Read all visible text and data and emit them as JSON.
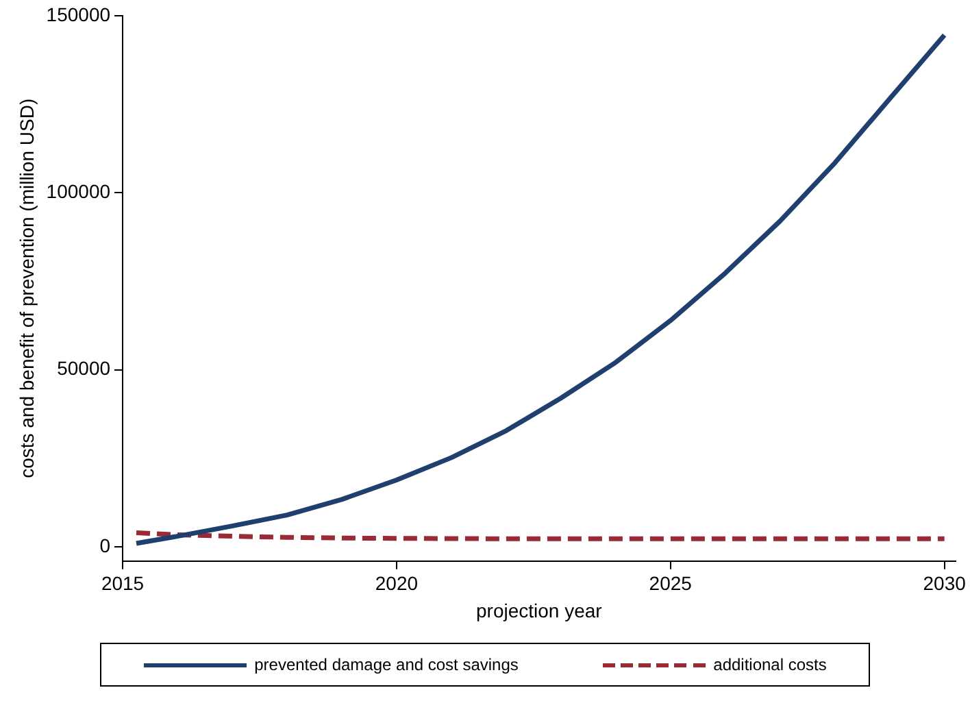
{
  "chart_data": {
    "type": "line",
    "xlabel": "projection year",
    "ylabel": "costs and benefit of prevention (million USD)",
    "xlim": [
      2015,
      2030.2
    ],
    "xticks": [
      2015,
      2020,
      2025,
      2030
    ],
    "ylim": [
      -4000,
      150000
    ],
    "yticks": [
      0,
      50000,
      100000,
      150000
    ],
    "grid": false,
    "legend": "bottom",
    "marker": "none",
    "series": [
      {
        "name": "prevented damage and cost savings",
        "color": "#1f3f6e",
        "line_style": "solid",
        "x": [
          2015.25,
          2016,
          2017,
          2018,
          2019,
          2020,
          2021,
          2022,
          2023,
          2024,
          2025,
          2026,
          2027,
          2028,
          2029,
          2030
        ],
        "values": [
          1000,
          3000,
          5900,
          9000,
          13400,
          18900,
          25200,
          32800,
          42000,
          52100,
          63900,
          77300,
          92000,
          108400,
          126500,
          144500
        ]
      },
      {
        "name": "additional costs",
        "color": "#9a2a36",
        "line_style": "dashed",
        "x": [
          2015.25,
          2016,
          2017,
          2018,
          2019,
          2020,
          2022,
          2025,
          2030
        ],
        "values": [
          4000,
          3400,
          3000,
          2700,
          2500,
          2400,
          2300,
          2300,
          2300
        ]
      }
    ]
  }
}
